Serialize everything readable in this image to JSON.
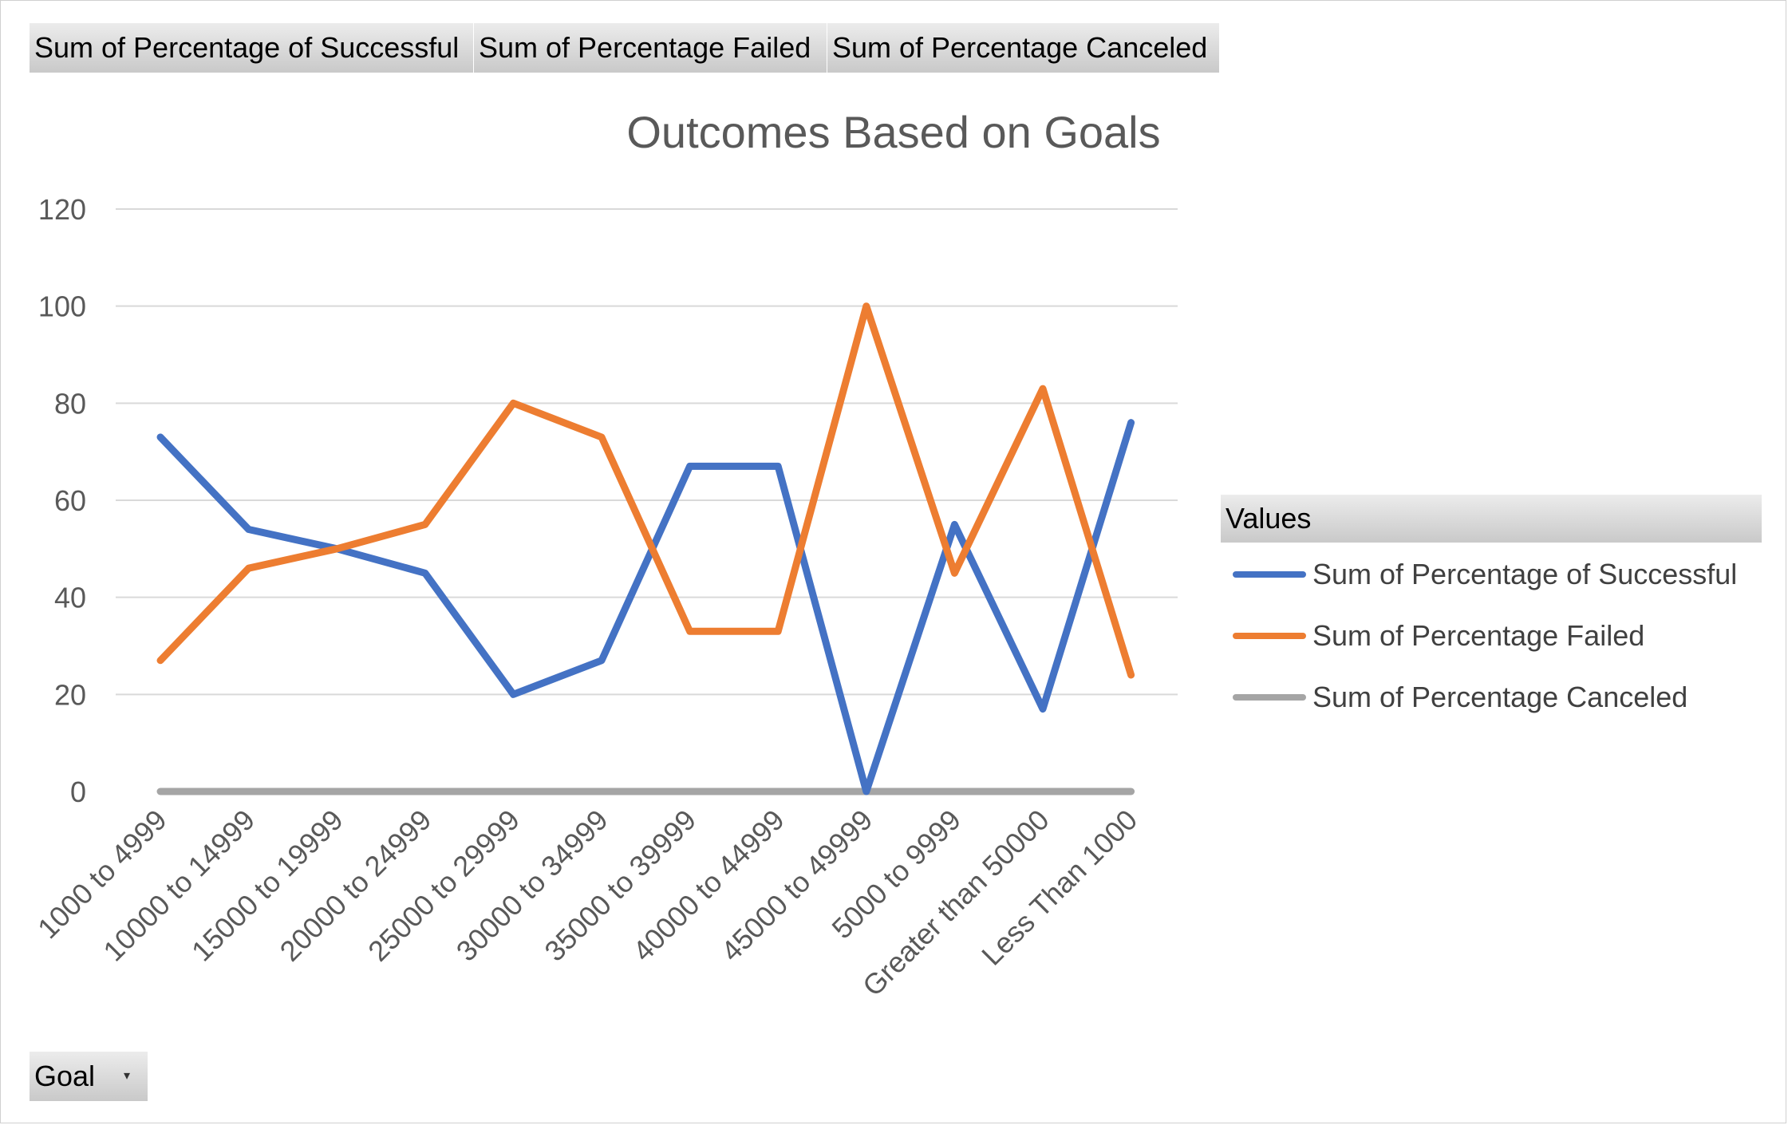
{
  "field_buttons": [
    "Sum of Percentage  of Successful",
    "Sum of Percentage  Failed",
    "Sum of Percentage  Canceled"
  ],
  "legend": {
    "header": "Values",
    "items": [
      {
        "label": "Sum of Percentage of Successful",
        "color": "#4472c4"
      },
      {
        "label": "Sum of Percentage Failed",
        "color": "#ed7d31"
      },
      {
        "label": "Sum of Percentage Canceled",
        "color": "#a5a5a5"
      }
    ]
  },
  "goal_button": {
    "label": "Goal",
    "arrow": "▾"
  },
  "chart_data": {
    "type": "line",
    "title": "Outcomes Based on Goals",
    "xlabel": "",
    "ylabel": "",
    "ylim": [
      0,
      120
    ],
    "yticks": [
      0,
      20,
      40,
      60,
      80,
      100,
      120
    ],
    "grid": true,
    "legend_position": "right",
    "categories": [
      "1000 to 4999",
      "10000 to 14999",
      "15000 to 19999",
      "20000 to 24999",
      "25000 to 29999",
      "30000 to 34999",
      "35000 to 39999",
      "40000 to 44999",
      "45000 to 49999",
      "5000 to 9999",
      "Greater than 50000",
      "Less Than 1000"
    ],
    "series": [
      {
        "name": "Sum of Percentage of Successful",
        "color": "#4472c4",
        "values": [
          73,
          54,
          50,
          45,
          20,
          27,
          67,
          67,
          0,
          55,
          17,
          76
        ]
      },
      {
        "name": "Sum of Percentage Failed",
        "color": "#ed7d31",
        "values": [
          27,
          46,
          50,
          55,
          80,
          73,
          33,
          33,
          100,
          45,
          83,
          24
        ]
      },
      {
        "name": "Sum of Percentage Canceled",
        "color": "#a5a5a5",
        "values": [
          0,
          0,
          0,
          0,
          0,
          0,
          0,
          0,
          0,
          0,
          0,
          0
        ]
      }
    ]
  }
}
